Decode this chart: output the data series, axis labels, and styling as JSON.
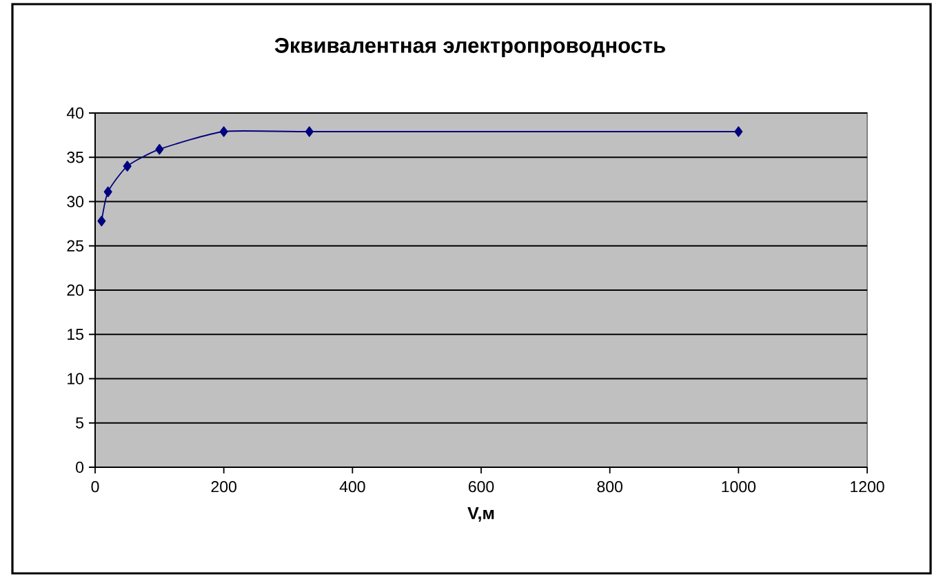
{
  "chart_data": {
    "type": "line",
    "title": "Эквивалентная электропроводность",
    "xlabel": "V,м",
    "x": [
      10,
      20,
      50,
      100,
      200,
      333,
      1000
    ],
    "values": [
      27.8,
      31.1,
      34,
      35.9,
      37.9,
      37.9,
      37.9
    ],
    "color": "#000080",
    "xlim": [
      0,
      1200
    ],
    "xticks": [
      0,
      200,
      400,
      600,
      800,
      1000,
      1200
    ],
    "ylim": [
      0,
      40
    ],
    "yticks": [
      0,
      5,
      10,
      15,
      20,
      25,
      30,
      35,
      40
    ],
    "grid": "y",
    "marker": "diamond",
    "line_style": "solid"
  }
}
